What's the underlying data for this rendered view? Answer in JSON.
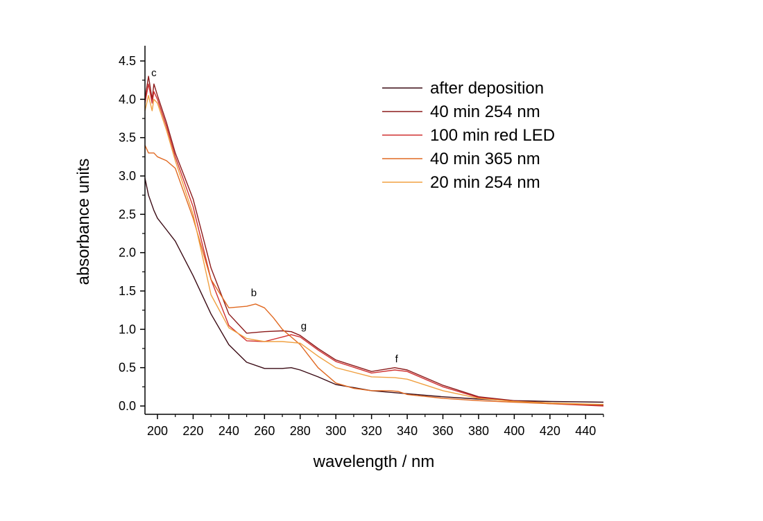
{
  "chart_data": {
    "type": "line",
    "title": "",
    "xlabel": "wavelength / nm",
    "ylabel": "absorbance units",
    "xlim": [
      193,
      450
    ],
    "ylim": [
      -0.1,
      4.5
    ],
    "xticks": [
      200,
      220,
      240,
      260,
      280,
      300,
      320,
      340,
      360,
      380,
      400,
      420,
      440
    ],
    "yticks": [
      0.0,
      0.5,
      1.0,
      1.5,
      2.0,
      2.5,
      3.0,
      3.5,
      4.0,
      4.5
    ],
    "legend_position": "top-right",
    "grid": false,
    "series": [
      {
        "name": "after deposition",
        "color": "#3a0a14",
        "x": [
          193,
          195,
          198,
          200,
          205,
          210,
          220,
          230,
          240,
          250,
          260,
          270,
          275,
          280,
          290,
          300,
          320,
          340,
          360,
          380,
          400,
          420,
          450
        ],
        "y": [
          2.97,
          2.75,
          2.55,
          2.45,
          2.3,
          2.15,
          1.7,
          1.2,
          0.8,
          0.57,
          0.49,
          0.49,
          0.5,
          0.47,
          0.38,
          0.28,
          0.2,
          0.16,
          0.12,
          0.09,
          0.07,
          0.06,
          0.05
        ]
      },
      {
        "name": "40 min 254 nm",
        "color": "#8b1a1a",
        "x": [
          193,
          195,
          197,
          198,
          200,
          205,
          210,
          220,
          230,
          240,
          250,
          260,
          270,
          275,
          280,
          290,
          300,
          320,
          333,
          340,
          360,
          380,
          400,
          420,
          450
        ],
        "y": [
          4.0,
          4.3,
          4.0,
          4.2,
          4.05,
          3.7,
          3.3,
          2.7,
          1.8,
          1.2,
          0.95,
          0.97,
          0.98,
          0.97,
          0.92,
          0.75,
          0.6,
          0.45,
          0.5,
          0.47,
          0.27,
          0.12,
          0.07,
          0.04,
          0.01
        ]
      },
      {
        "name": "100 min red LED",
        "color": "#d03030",
        "x": [
          193,
          195,
          197,
          198,
          200,
          205,
          210,
          220,
          230,
          240,
          250,
          260,
          270,
          275,
          280,
          290,
          300,
          320,
          333,
          340,
          360,
          380,
          400,
          420,
          450
        ],
        "y": [
          3.95,
          4.2,
          3.95,
          4.1,
          4.0,
          3.65,
          3.25,
          2.6,
          1.65,
          1.05,
          0.85,
          0.84,
          0.9,
          0.93,
          0.9,
          0.73,
          0.58,
          0.43,
          0.47,
          0.45,
          0.25,
          0.11,
          0.06,
          0.03,
          0.0
        ]
      },
      {
        "name": "40 min 365 nm",
        "color": "#e06820",
        "x": [
          193,
          195,
          198,
          200,
          205,
          210,
          220,
          230,
          240,
          250,
          255,
          260,
          265,
          270,
          280,
          290,
          300,
          310,
          320,
          330,
          335,
          340,
          360,
          380,
          400,
          420,
          450
        ],
        "y": [
          3.4,
          3.3,
          3.3,
          3.25,
          3.2,
          3.1,
          2.45,
          1.65,
          1.28,
          1.3,
          1.33,
          1.28,
          1.15,
          1.0,
          0.8,
          0.5,
          0.3,
          0.23,
          0.2,
          0.2,
          0.19,
          0.15,
          0.1,
          0.07,
          0.05,
          0.03,
          0.02
        ]
      },
      {
        "name": "20 min 254 nm",
        "color": "#f0a040",
        "x": [
          193,
          195,
          197,
          198,
          200,
          205,
          210,
          220,
          230,
          240,
          250,
          260,
          270,
          280,
          290,
          300,
          320,
          333,
          340,
          360,
          380,
          400,
          420,
          450
        ],
        "y": [
          3.85,
          4.05,
          3.85,
          4.0,
          3.95,
          3.6,
          3.2,
          2.5,
          1.45,
          1.02,
          0.88,
          0.84,
          0.84,
          0.82,
          0.65,
          0.5,
          0.38,
          0.37,
          0.35,
          0.2,
          0.1,
          0.06,
          0.04,
          0.02
        ]
      }
    ],
    "annotations": [
      {
        "text": "c",
        "x": 198,
        "y": 4.3
      },
      {
        "text": "b",
        "x": 254,
        "y": 1.43
      },
      {
        "text": "g",
        "x": 282,
        "y": 1.0
      },
      {
        "text": "f",
        "x": 334,
        "y": 0.57
      }
    ]
  }
}
